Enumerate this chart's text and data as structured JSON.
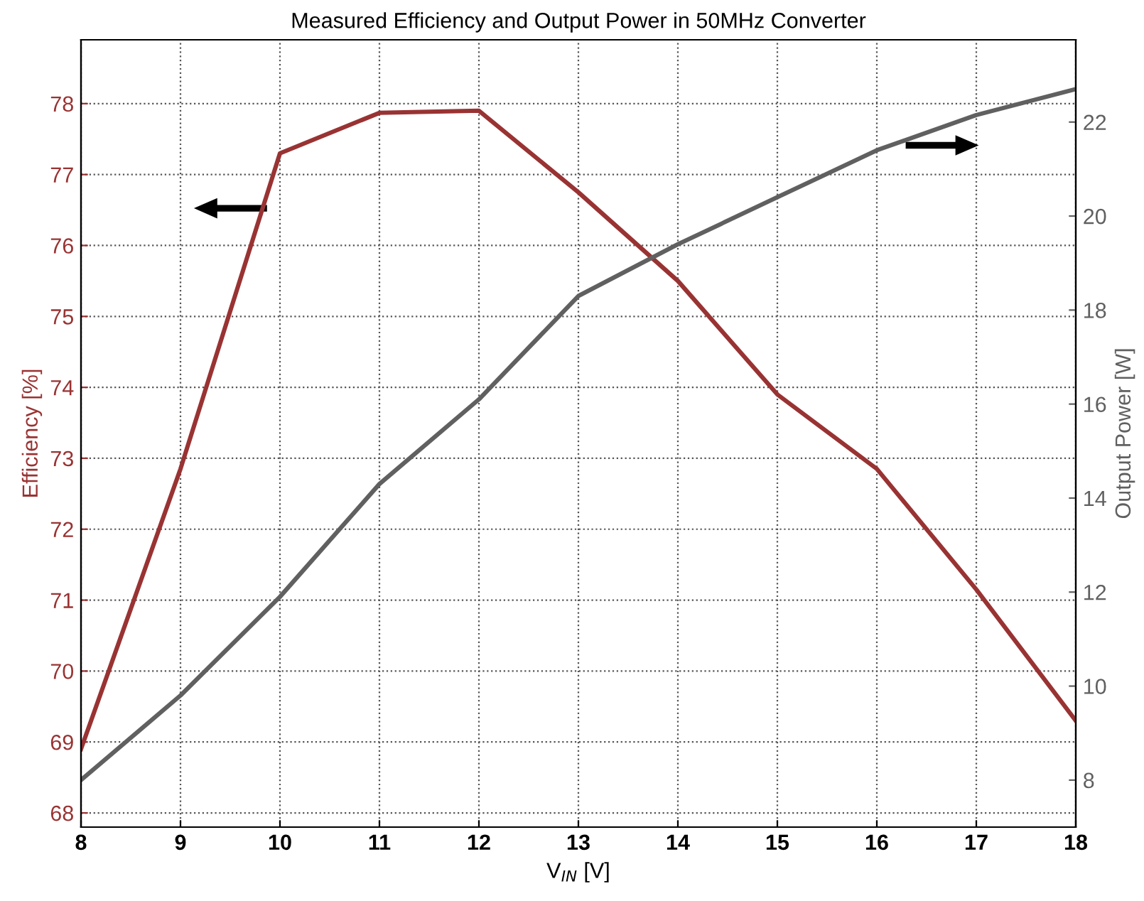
{
  "chart_data": {
    "type": "line",
    "title": "Measured Efficiency and Output Power in 50MHz Converter",
    "xlabel": "V$_{IN}$ [V]",
    "ylabel": "Efficiency [%]",
    "y2label": "Output Power [W]",
    "x": [
      8,
      9,
      10,
      11,
      12,
      13,
      14,
      15,
      16,
      17,
      18
    ],
    "series": [
      {
        "color": "#993333",
        "values": [
          68.9,
          72.85,
          77.3,
          77.87,
          77.9,
          76.75,
          75.5,
          73.9,
          72.85,
          71.15,
          69.3
        ]
      },
      {
        "color": "#606060",
        "axis": "y2",
        "values": [
          8.0,
          9.8,
          11.9,
          14.3,
          16.1,
          18.3,
          19.4,
          20.4,
          21.4,
          22.15,
          22.7
        ]
      }
    ],
    "xlim": [
      8,
      18
    ],
    "xticks": [
      8,
      9,
      10,
      11,
      12,
      13,
      14,
      15,
      16,
      17,
      18
    ],
    "ylim": [
      67.8,
      78.9
    ],
    "yticks": [
      68,
      69,
      70,
      71,
      72,
      73,
      74,
      75,
      76,
      77,
      78
    ],
    "y2lim": [
      7.0,
      23.75
    ],
    "y2ticks": [
      8,
      10,
      12,
      14,
      16,
      18,
      20,
      22
    ],
    "grid": true,
    "line_style": "solid",
    "marker": "none"
  }
}
